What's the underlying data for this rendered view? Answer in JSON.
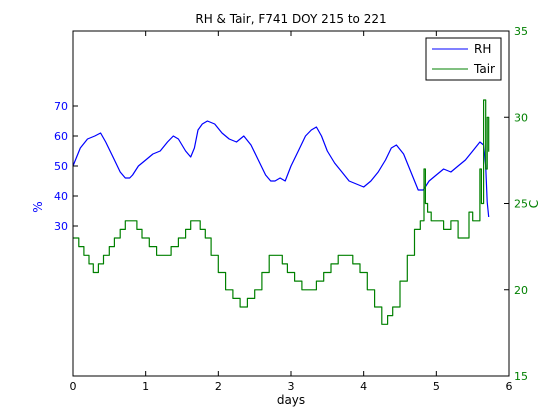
{
  "chart_data": {
    "type": "line",
    "title": "RH & Tair, F741 DOY 215 to 221",
    "xlabel": "days",
    "ylabel_left": "%",
    "ylabel_right": "C",
    "xlim": [
      0,
      6
    ],
    "ylim_left": [
      -20,
      95
    ],
    "ylim_right": [
      15,
      35
    ],
    "x_ticks": [
      0,
      1,
      2,
      3,
      4,
      5,
      6
    ],
    "y_ticks_left": [
      30,
      40,
      50,
      60,
      70
    ],
    "y_ticks_right": [
      15,
      20,
      25,
      30,
      35
    ],
    "grid": false,
    "legend_position": "top-right",
    "series": [
      {
        "name": "RH",
        "axis": "left",
        "color": "#0000ff",
        "x": [
          0.0,
          0.1,
          0.2,
          0.3,
          0.38,
          0.45,
          0.55,
          0.65,
          0.72,
          0.78,
          0.82,
          0.9,
          1.0,
          1.1,
          1.2,
          1.3,
          1.38,
          1.45,
          1.55,
          1.62,
          1.67,
          1.72,
          1.78,
          1.85,
          1.95,
          2.05,
          2.15,
          2.25,
          2.35,
          2.45,
          2.55,
          2.65,
          2.72,
          2.78,
          2.85,
          2.92,
          3.0,
          3.1,
          3.2,
          3.28,
          3.35,
          3.42,
          3.5,
          3.6,
          3.7,
          3.8,
          3.9,
          4.0,
          4.1,
          4.2,
          4.3,
          4.38,
          4.45,
          4.55,
          4.65,
          4.75,
          4.82,
          4.9,
          5.0,
          5.1,
          5.2,
          5.3,
          5.4,
          5.5,
          5.6,
          5.65,
          5.68,
          5.7,
          5.72
        ],
        "y": [
          50,
          56,
          59,
          60,
          61,
          58,
          53,
          48,
          46,
          46,
          47,
          50,
          52,
          54,
          55,
          58,
          60,
          59,
          55,
          53,
          56,
          62,
          64,
          65,
          64,
          61,
          59,
          58,
          60,
          57,
          52,
          47,
          45,
          45,
          46,
          45,
          50,
          55,
          60,
          62,
          63,
          60,
          55,
          51,
          48,
          45,
          44,
          43,
          45,
          48,
          52,
          56,
          57,
          54,
          48,
          42,
          42,
          45,
          47,
          49,
          48,
          50,
          52,
          55,
          58,
          57,
          50,
          38,
          33
        ]
      },
      {
        "name": "Tair",
        "axis": "right",
        "color": "#008000",
        "x": [
          0.0,
          0.08,
          0.15,
          0.22,
          0.28,
          0.35,
          0.42,
          0.5,
          0.57,
          0.65,
          0.72,
          0.8,
          0.88,
          0.95,
          1.05,
          1.15,
          1.25,
          1.35,
          1.45,
          1.55,
          1.62,
          1.68,
          1.75,
          1.82,
          1.9,
          2.0,
          2.1,
          2.2,
          2.3,
          2.4,
          2.5,
          2.6,
          2.7,
          2.8,
          2.88,
          2.95,
          3.05,
          3.15,
          3.25,
          3.35,
          3.45,
          3.55,
          3.65,
          3.75,
          3.85,
          3.95,
          4.05,
          4.15,
          4.25,
          4.33,
          4.4,
          4.5,
          4.6,
          4.7,
          4.78,
          4.83,
          4.85,
          4.88,
          4.93,
          5.0,
          5.1,
          5.2,
          5.3,
          5.4,
          5.45,
          5.5,
          5.55,
          5.6,
          5.62,
          5.65,
          5.68,
          5.7,
          5.72
        ],
        "y": [
          23,
          22.5,
          22,
          21.5,
          21,
          21.5,
          22,
          22.5,
          23,
          23.5,
          24,
          24,
          23.5,
          23,
          22.5,
          22,
          22,
          22.5,
          23,
          23.5,
          24,
          24,
          23.5,
          23,
          22,
          21,
          20,
          19.5,
          19,
          19.5,
          20,
          21,
          22,
          22,
          21.5,
          21,
          20.5,
          20,
          20,
          20.5,
          21,
          21.5,
          22,
          22,
          21.5,
          21,
          20,
          19,
          18,
          18.5,
          19,
          20.5,
          22,
          23.5,
          24,
          27,
          25,
          24.5,
          24,
          24,
          23.5,
          24,
          23,
          23,
          24.5,
          24,
          24,
          27,
          25,
          31,
          27,
          30,
          28
        ]
      }
    ]
  }
}
